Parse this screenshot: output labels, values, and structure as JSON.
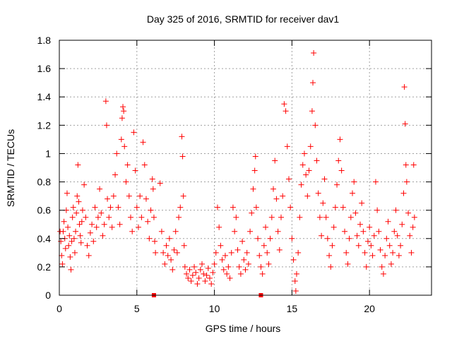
{
  "chart_data": {
    "type": "scatter",
    "title": "Day 325 of 2016, SRMTID for receiver dav1",
    "xlabel": "GPS time / hours",
    "ylabel": "SRMTID / TECUs",
    "xlim": [
      0,
      24
    ],
    "ylim": [
      0,
      1.8
    ],
    "xticks": [
      0,
      5,
      10,
      15,
      20
    ],
    "yticks": [
      0,
      0.2,
      0.4,
      0.6,
      0.8,
      1,
      1.2,
      1.4,
      1.6,
      1.8
    ],
    "xtick_labels": [
      "0",
      "5",
      "10",
      "15",
      "20"
    ],
    "ytick_labels": [
      "0",
      "0.2",
      "0.4",
      "0.6",
      "0.8",
      "1",
      "1.2",
      "1.4",
      "1.6",
      "1.8"
    ],
    "grid": true,
    "marker": "+",
    "color": "#ff0000",
    "series": [
      {
        "name": "dav1",
        "points": [
          [
            0.05,
            0.45
          ],
          [
            0.1,
            0.38
          ],
          [
            0.15,
            0.28
          ],
          [
            0.2,
            0.22
          ],
          [
            0.25,
            0.45
          ],
          [
            0.3,
            0.52
          ],
          [
            0.35,
            0.4
          ],
          [
            0.4,
            0.33
          ],
          [
            0.45,
            0.6
          ],
          [
            0.5,
            0.72
          ],
          [
            0.55,
            0.48
          ],
          [
            0.6,
            0.35
          ],
          [
            0.65,
            0.42
          ],
          [
            0.7,
            0.27
          ],
          [
            0.75,
            0.18
          ],
          [
            0.8,
            0.38
          ],
          [
            0.85,
            0.55
          ],
          [
            0.9,
            0.62
          ],
          [
            0.95,
            0.4
          ],
          [
            1.0,
            0.3
          ],
          [
            1.05,
            0.45
          ],
          [
            1.1,
            0.58
          ],
          [
            1.15,
            0.7
          ],
          [
            1.2,
            0.92
          ],
          [
            1.25,
            0.66
          ],
          [
            1.3,
            0.5
          ],
          [
            1.35,
            0.42
          ],
          [
            1.4,
            0.37
          ],
          [
            1.45,
            0.52
          ],
          [
            1.5,
            0.6
          ],
          [
            1.6,
            0.78
          ],
          [
            1.7,
            0.55
          ],
          [
            1.8,
            0.35
          ],
          [
            1.9,
            0.28
          ],
          [
            2.0,
            0.44
          ],
          [
            2.1,
            0.5
          ],
          [
            2.2,
            0.38
          ],
          [
            2.3,
            0.62
          ],
          [
            2.4,
            0.48
          ],
          [
            2.5,
            0.55
          ],
          [
            2.6,
            0.75
          ],
          [
            2.7,
            0.58
          ],
          [
            2.8,
            0.42
          ],
          [
            2.9,
            0.5
          ],
          [
            3.0,
            1.37
          ],
          [
            3.05,
            1.2
          ],
          [
            3.1,
            0.68
          ],
          [
            3.2,
            0.55
          ],
          [
            3.3,
            0.62
          ],
          [
            3.4,
            0.48
          ],
          [
            3.5,
            0.7
          ],
          [
            3.6,
            0.85
          ],
          [
            3.7,
            1.0
          ],
          [
            3.8,
            0.62
          ],
          [
            3.9,
            0.5
          ],
          [
            4.0,
            1.1
          ],
          [
            4.05,
            1.25
          ],
          [
            4.1,
            1.33
          ],
          [
            4.15,
            1.3
          ],
          [
            4.2,
            1.05
          ],
          [
            4.3,
            0.8
          ],
          [
            4.4,
            0.92
          ],
          [
            4.5,
            0.7
          ],
          [
            4.6,
            0.55
          ],
          [
            4.7,
            0.45
          ],
          [
            4.8,
            1.15
          ],
          [
            4.9,
            0.88
          ],
          [
            5.0,
            0.62
          ],
          [
            5.1,
            0.48
          ],
          [
            5.2,
            0.7
          ],
          [
            5.3,
            0.55
          ],
          [
            5.4,
            1.08
          ],
          [
            5.5,
            0.92
          ],
          [
            5.6,
            0.68
          ],
          [
            5.7,
            0.52
          ],
          [
            5.8,
            0.4
          ],
          [
            5.9,
            0.6
          ],
          [
            6.0,
            0.82
          ],
          [
            6.05,
            0.75
          ],
          [
            6.1,
            0.55
          ],
          [
            6.15,
            0.38
          ],
          [
            6.2,
            0.3
          ],
          [
            6.5,
            0.79
          ],
          [
            6.6,
            0.45
          ],
          [
            6.7,
            0.3
          ],
          [
            6.8,
            0.22
          ],
          [
            6.9,
            0.35
          ],
          [
            7.0,
            0.28
          ],
          [
            7.1,
            0.4
          ],
          [
            7.2,
            0.25
          ],
          [
            7.3,
            0.18
          ],
          [
            7.4,
            0.32
          ],
          [
            7.5,
            0.45
          ],
          [
            7.6,
            0.3
          ],
          [
            7.7,
            0.55
          ],
          [
            7.8,
            0.62
          ],
          [
            7.9,
            1.12
          ],
          [
            7.95,
            0.98
          ],
          [
            8.0,
            0.7
          ],
          [
            8.05,
            0.35
          ],
          [
            8.1,
            0.2
          ],
          [
            8.2,
            0.15
          ],
          [
            8.3,
            0.12
          ],
          [
            8.4,
            0.18
          ],
          [
            8.5,
            0.1
          ],
          [
            8.6,
            0.14
          ],
          [
            8.7,
            0.2
          ],
          [
            8.8,
            0.16
          ],
          [
            8.9,
            0.08
          ],
          [
            9.0,
            0.12
          ],
          [
            9.1,
            0.18
          ],
          [
            9.2,
            0.22
          ],
          [
            9.3,
            0.15
          ],
          [
            9.4,
            0.1
          ],
          [
            9.5,
            0.14
          ],
          [
            9.6,
            0.19
          ],
          [
            9.7,
            0.12
          ],
          [
            9.8,
            0.08
          ],
          [
            9.9,
            0.16
          ],
          [
            10.0,
            0.22
          ],
          [
            10.1,
            0.3
          ],
          [
            10.2,
            0.62
          ],
          [
            10.3,
            0.48
          ],
          [
            10.4,
            0.35
          ],
          [
            10.5,
            0.25
          ],
          [
            10.6,
            0.18
          ],
          [
            10.7,
            0.28
          ],
          [
            10.8,
            0.15
          ],
          [
            10.9,
            0.2
          ],
          [
            11.0,
            0.12
          ],
          [
            11.1,
            0.3
          ],
          [
            11.2,
            0.62
          ],
          [
            11.3,
            0.45
          ],
          [
            11.4,
            0.55
          ],
          [
            11.5,
            0.32
          ],
          [
            11.6,
            0.2
          ],
          [
            11.7,
            0.15
          ],
          [
            11.8,
            0.38
          ],
          [
            11.9,
            0.25
          ],
          [
            12.0,
            0.18
          ],
          [
            12.1,
            0.3
          ],
          [
            12.2,
            0.22
          ],
          [
            12.3,
            0.45
          ],
          [
            12.4,
            0.58
          ],
          [
            12.5,
            0.75
          ],
          [
            12.6,
            0.88
          ],
          [
            12.65,
            0.98
          ],
          [
            12.7,
            0.62
          ],
          [
            12.8,
            0.4
          ],
          [
            12.9,
            0.28
          ],
          [
            13.0,
            0.2
          ],
          [
            13.1,
            0.15
          ],
          [
            13.2,
            0.35
          ],
          [
            13.3,
            0.48
          ],
          [
            13.4,
            0.3
          ],
          [
            13.5,
            0.22
          ],
          [
            13.6,
            0.4
          ],
          [
            13.7,
            0.55
          ],
          [
            13.8,
            0.75
          ],
          [
            13.9,
            0.95
          ],
          [
            14.0,
            0.68
          ],
          [
            14.1,
            0.45
          ],
          [
            14.2,
            0.32
          ],
          [
            14.3,
            0.55
          ],
          [
            14.4,
            0.7
          ],
          [
            14.5,
            1.35
          ],
          [
            14.6,
            1.3
          ],
          [
            14.7,
            1.05
          ],
          [
            14.8,
            0.82
          ],
          [
            14.9,
            0.62
          ],
          [
            15.0,
            0.4
          ],
          [
            15.1,
            0.25
          ],
          [
            15.2,
            0.1
          ],
          [
            15.25,
            0.03
          ],
          [
            15.3,
            0.15
          ],
          [
            15.4,
            0.3
          ],
          [
            15.5,
            0.55
          ],
          [
            15.6,
            0.78
          ],
          [
            15.7,
            0.92
          ],
          [
            15.8,
            1.0
          ],
          [
            15.9,
            0.85
          ],
          [
            16.0,
            0.7
          ],
          [
            16.1,
            0.88
          ],
          [
            16.2,
            1.05
          ],
          [
            16.3,
            1.3
          ],
          [
            16.35,
            1.5
          ],
          [
            16.4,
            1.71
          ],
          [
            16.5,
            1.2
          ],
          [
            16.6,
            0.95
          ],
          [
            16.7,
            0.72
          ],
          [
            16.8,
            0.55
          ],
          [
            16.9,
            0.42
          ],
          [
            17.0,
            0.65
          ],
          [
            17.1,
            0.82
          ],
          [
            17.2,
            0.55
          ],
          [
            17.3,
            0.4
          ],
          [
            17.4,
            0.28
          ],
          [
            17.5,
            0.2
          ],
          [
            17.6,
            0.35
          ],
          [
            17.7,
            0.48
          ],
          [
            17.8,
            0.62
          ],
          [
            17.9,
            0.78
          ],
          [
            18.0,
            0.95
          ],
          [
            18.1,
            1.1
          ],
          [
            18.2,
            0.88
          ],
          [
            18.3,
            0.62
          ],
          [
            18.4,
            0.45
          ],
          [
            18.5,
            0.3
          ],
          [
            18.6,
            0.22
          ],
          [
            18.7,
            0.4
          ],
          [
            18.8,
            0.55
          ],
          [
            18.9,
            0.72
          ],
          [
            19.0,
            0.8
          ],
          [
            19.1,
            0.58
          ],
          [
            19.2,
            0.42
          ],
          [
            19.3,
            0.35
          ],
          [
            19.4,
            0.5
          ],
          [
            19.5,
            0.65
          ],
          [
            19.6,
            0.45
          ],
          [
            19.7,
            0.3
          ],
          [
            19.8,
            0.2
          ],
          [
            19.9,
            0.38
          ],
          [
            20.0,
            0.48
          ],
          [
            20.1,
            0.35
          ],
          [
            20.2,
            0.28
          ],
          [
            20.3,
            0.42
          ],
          [
            20.4,
            0.8
          ],
          [
            20.5,
            0.6
          ],
          [
            20.6,
            0.45
          ],
          [
            20.7,
            0.32
          ],
          [
            20.8,
            0.2
          ],
          [
            20.9,
            0.15
          ],
          [
            21.0,
            0.28
          ],
          [
            21.1,
            0.4
          ],
          [
            21.2,
            0.52
          ],
          [
            21.3,
            0.35
          ],
          [
            21.4,
            0.22
          ],
          [
            21.5,
            0.3
          ],
          [
            21.6,
            0.45
          ],
          [
            21.7,
            0.6
          ],
          [
            21.8,
            0.42
          ],
          [
            21.9,
            0.28
          ],
          [
            22.0,
            0.35
          ],
          [
            22.1,
            0.5
          ],
          [
            22.2,
            0.72
          ],
          [
            22.25,
            1.47
          ],
          [
            22.3,
            1.21
          ],
          [
            22.35,
            0.92
          ],
          [
            22.4,
            0.8
          ],
          [
            22.5,
            0.58
          ],
          [
            22.6,
            0.42
          ],
          [
            22.7,
            0.3
          ],
          [
            22.8,
            0.48
          ],
          [
            22.85,
            0.92
          ],
          [
            22.9,
            0.55
          ]
        ]
      }
    ],
    "gap_markers": [
      [
        6.1,
        0
      ],
      [
        13.0,
        0
      ]
    ]
  }
}
